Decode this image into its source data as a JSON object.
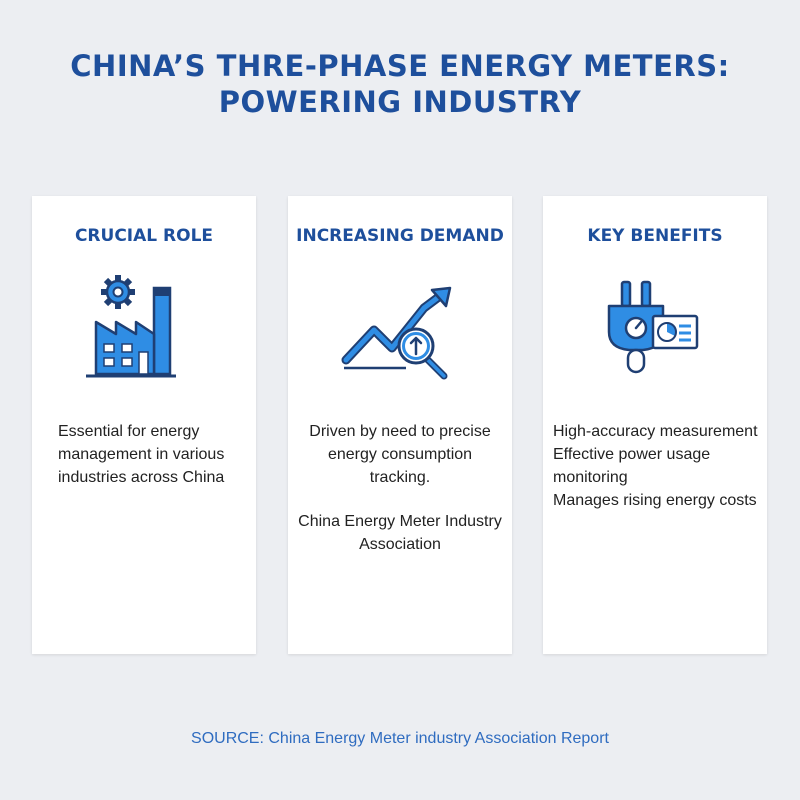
{
  "title": {
    "line1": "CHINA’S THRE-PHASE ENERGY METERS:",
    "line2": "POWERING INDUSTRY"
  },
  "colors": {
    "title": "#1e4f9c",
    "icon_blue": "#2f8de4",
    "icon_navy": "#1f3f73",
    "background": "#eceef2",
    "source": "#2f6cc0"
  },
  "cards": [
    {
      "heading": "CRUCIAL ROLE",
      "icon": "factory-gear-icon",
      "text": "Essential for energy management in various industries across China"
    },
    {
      "heading": "INCREASING DEMAND",
      "icon": "rising-chart-magnifier-icon",
      "text": "Driven by need to precise energy consumption tracking.",
      "subtext": "China Energy Meter Industry Association"
    },
    {
      "heading": "KEY BENEFITS",
      "icon": "plug-chart-icon",
      "items": [
        "High-accuracy measurement",
        "Effective power usage",
        "monitoring",
        "Manages rising energy costs"
      ]
    }
  ],
  "source": "SOURCE: China Energy Meter industry Association Report"
}
